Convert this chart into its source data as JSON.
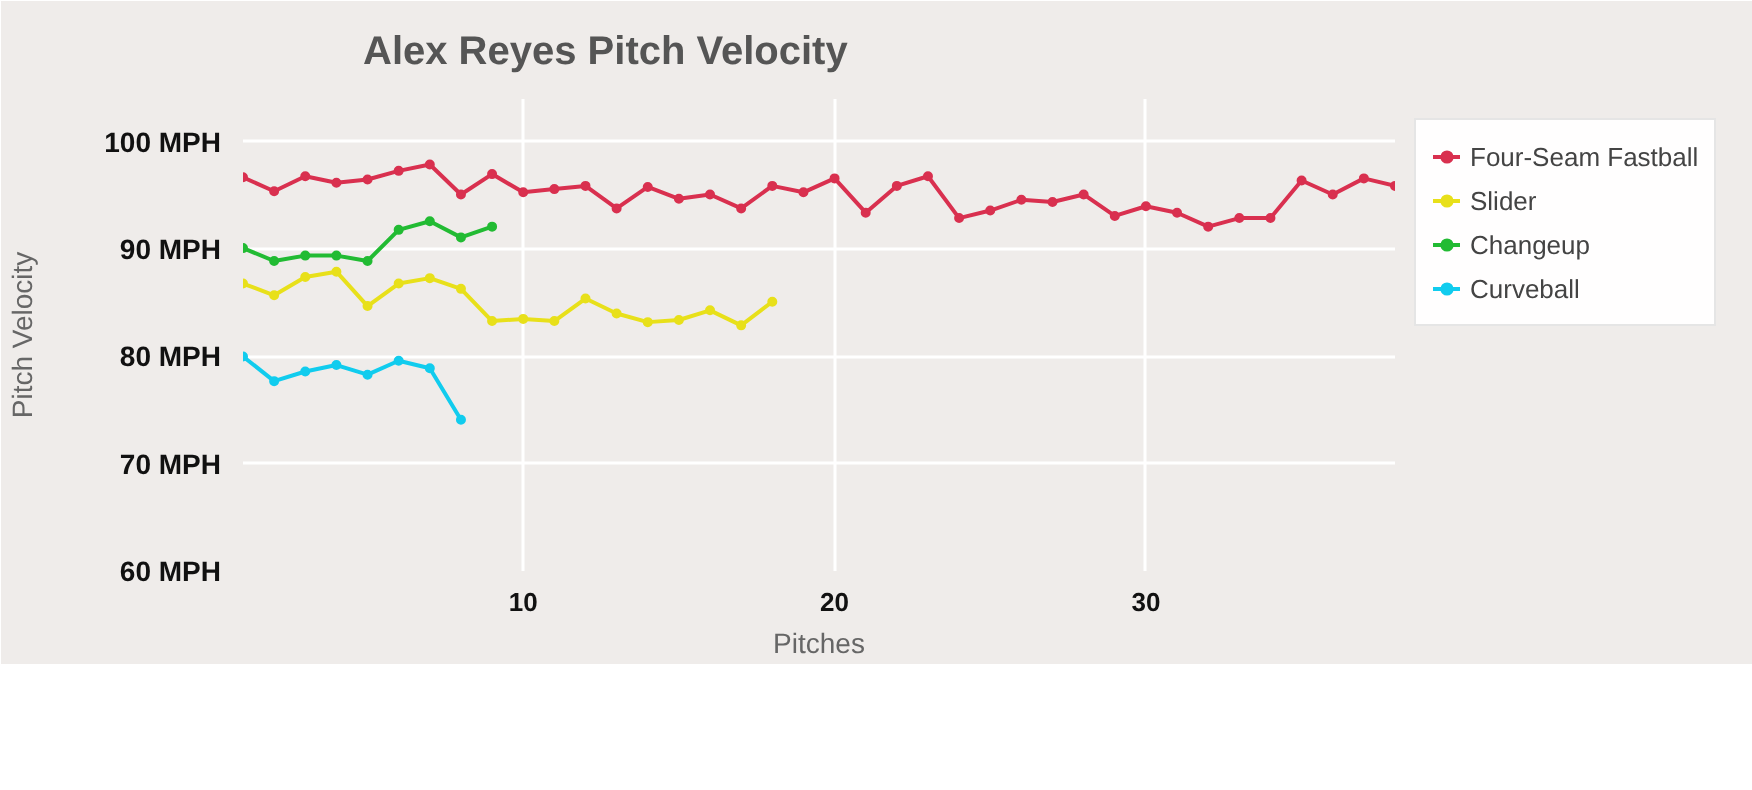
{
  "chart_data": {
    "type": "line",
    "title": "Alex Reyes Pitch Velocity",
    "xlabel": "Pitches",
    "ylabel": "Pitch Velocity",
    "xlim": [
      1,
      38
    ],
    "xticks": [
      10,
      20,
      30
    ],
    "ylim": [
      60,
      104
    ],
    "yticks": [
      {
        "value": 60,
        "label": "60 MPH"
      },
      {
        "value": 70,
        "label": "70 MPH"
      },
      {
        "value": 80,
        "label": "80 MPH"
      },
      {
        "value": 90,
        "label": "90 MPH"
      },
      {
        "value": 100,
        "label": "100 MPH"
      }
    ],
    "grid": true,
    "legend": "right",
    "marker": "circle",
    "line_style": "solid",
    "series": [
      {
        "name": "Four-Seam Fastball",
        "color": "#d9304f",
        "x": [
          1,
          2,
          3,
          4,
          5,
          6,
          7,
          8,
          9,
          10,
          11,
          12,
          13,
          14,
          15,
          16,
          17,
          18,
          19,
          20,
          21,
          22,
          23,
          24,
          25,
          26,
          27,
          28,
          29,
          30,
          31,
          32,
          33,
          34,
          35,
          36,
          37,
          38
        ],
        "values": [
          96.7,
          95.4,
          96.8,
          96.2,
          96.5,
          97.3,
          97.9,
          95.1,
          97.0,
          95.3,
          95.6,
          95.9,
          93.8,
          95.8,
          94.7,
          95.1,
          93.8,
          95.9,
          95.3,
          96.6,
          93.4,
          95.9,
          96.8,
          92.9,
          93.6,
          94.6,
          94.4,
          95.1,
          93.1,
          94.0,
          93.4,
          92.1,
          92.9,
          92.9,
          96.4,
          95.1,
          96.6,
          95.9
        ]
      },
      {
        "name": "Slider",
        "color": "#e8e01a",
        "x": [
          1,
          2,
          3,
          4,
          5,
          6,
          7,
          8,
          9,
          10,
          11,
          12,
          13,
          14,
          15,
          16,
          17,
          18
        ],
        "values": [
          86.8,
          85.7,
          87.4,
          87.9,
          84.7,
          86.8,
          87.3,
          86.3,
          83.3,
          83.5,
          83.3,
          85.4,
          84.0,
          83.2,
          83.4,
          84.3,
          82.9,
          85.1
        ]
      },
      {
        "name": "Changeup",
        "color": "#22bb33",
        "x": [
          1,
          2,
          3,
          4,
          5,
          6,
          7,
          8,
          9
        ],
        "values": [
          90.1,
          88.9,
          89.4,
          89.4,
          88.9,
          91.8,
          92.6,
          91.1,
          92.1
        ]
      },
      {
        "name": "Curveball",
        "color": "#11ccee",
        "x": [
          1,
          2,
          3,
          4,
          5,
          6,
          7,
          8
        ],
        "values": [
          80.0,
          77.7,
          78.6,
          79.2,
          78.3,
          79.6,
          78.9,
          74.1
        ]
      }
    ]
  }
}
